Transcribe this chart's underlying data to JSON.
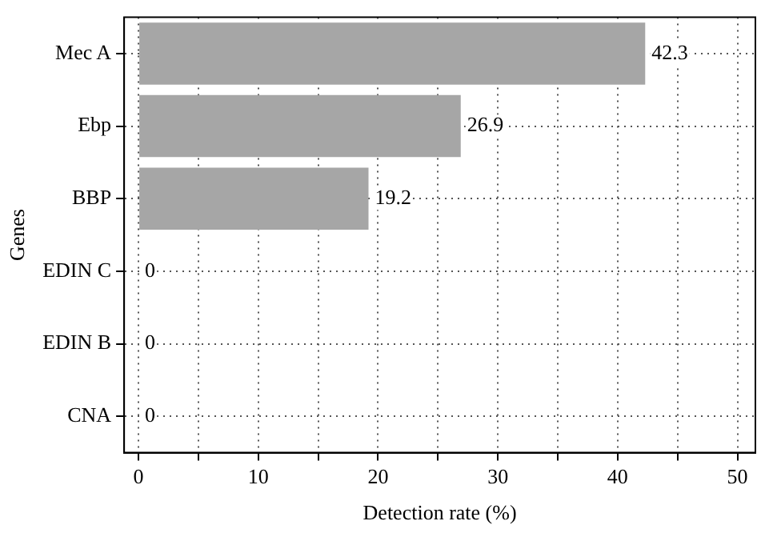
{
  "chart_data": {
    "type": "bar",
    "orientation": "horizontal",
    "xlabel": "Detection rate (%)",
    "ylabel": "Genes",
    "categories": [
      "Mec A",
      "Ebp",
      "BBP",
      "EDIN C",
      "EDIN B",
      "CNA"
    ],
    "values": [
      42.3,
      26.9,
      19.2,
      0,
      0,
      0
    ],
    "color": "#a6a6a6",
    "xlim": [
      -1.2,
      51.5
    ],
    "xticks": [
      0,
      {
        "value": 5,
        "label": null
      },
      10,
      {
        "value": 15,
        "label": null
      },
      20,
      {
        "value": 25,
        "label": null
      },
      30,
      {
        "value": 35,
        "label": null
      },
      40,
      {
        "value": 45,
        "label": null
      },
      50
    ],
    "grid": true,
    "data_labels": true,
    "legend": false
  }
}
